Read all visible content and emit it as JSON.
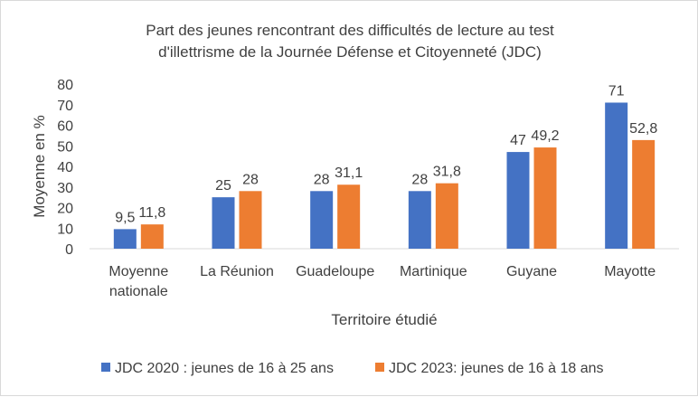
{
  "chart_data": {
    "type": "bar",
    "title": [
      "Part des jeunes rencontrant des difficultés de lecture au test",
      "d'illettrisme de la Journée Défense et Citoyenneté (JDC)"
    ],
    "xlabel": "Territoire étudié",
    "ylabel": "Moyenne en %",
    "ylim": [
      0,
      80
    ],
    "yticks": [
      "0",
      "10",
      "20",
      "30",
      "40",
      "50",
      "60",
      "70",
      "80"
    ],
    "categories": [
      [
        "Moyenne",
        "nationale"
      ],
      [
        "La Réunion"
      ],
      [
        "Guadeloupe"
      ],
      [
        "Martinique"
      ],
      [
        "Guyane"
      ],
      [
        "Mayotte"
      ]
    ],
    "series": [
      {
        "name": "JDC 2020 : jeunes de 16 à 25 ans",
        "color": "#4472C4",
        "values": [
          9.5,
          25,
          28,
          28,
          47,
          71
        ],
        "labels": [
          "9,5",
          "25",
          "28",
          "28",
          "47",
          "71"
        ]
      },
      {
        "name": "JDC 2023: jeunes de 16 à 18 ans",
        "color": "#ED7D31",
        "values": [
          11.8,
          28,
          31.1,
          31.8,
          49.2,
          52.8
        ],
        "labels": [
          "11,8",
          "28",
          "31,1",
          "31,8",
          "49,2",
          "52,8"
        ]
      }
    ],
    "grid": false,
    "legend": "bottom"
  }
}
